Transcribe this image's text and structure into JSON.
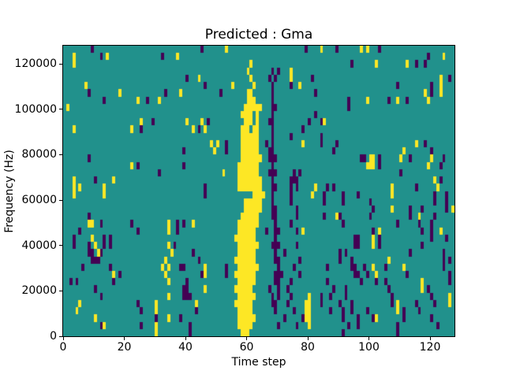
{
  "chart_data": {
    "type": "heatmap",
    "title": "Predicted : Gma",
    "xlabel": "Time step",
    "ylabel": "Frequency (Hz)",
    "x_ticks": [
      0,
      20,
      40,
      60,
      80,
      100,
      120
    ],
    "y_ticks": [
      0,
      20000,
      40000,
      60000,
      80000,
      100000,
      120000
    ],
    "xlim": [
      0,
      128
    ],
    "ylim": [
      0,
      128000
    ],
    "grid": {
      "cols": 128,
      "rows": 40,
      "row_order": "top_to_bottom",
      "hz_per_row": 3200,
      "default_class": "teal"
    },
    "colors": {
      "dark": "#440154",
      "teal": "#21918c",
      "yellow": "#fde725",
      "background": "#ffffff",
      "axis": "#000000"
    },
    "rows": [
      {
        "y": [
          53,
          84,
          97,
          99
        ],
        "d": [
          9,
          45,
          79,
          89,
          103
        ]
      },
      {
        "y": [
          3,
          14,
          37,
          124
        ],
        "d": [
          12,
          32,
          119
        ]
      },
      {
        "y": [
          3,
          61,
          102,
          112
        ],
        "d": [
          94,
          115,
          118
        ]
      },
      {
        "y": [
          60,
          74
        ],
        "d": [
          68,
          70
        ]
      },
      {
        "y": [
          44,
          61,
          74,
          123
        ],
        "d": [
          40,
          67,
          69,
          81,
          126
        ]
      },
      {
        "y": [
          7,
          55,
          62,
          77,
          123
        ],
        "d": [
          46,
          68,
          74,
          109,
          120
        ]
      },
      {
        "y": [
          18,
          38,
          [
            60,
            61
          ],
          118,
          123
        ],
        "d": [
          8,
          33,
          51,
          68,
          82,
          120
        ]
      },
      {
        "y": [
          24,
          31,
          [
            60,
            62
          ],
          99,
          109,
          119
        ],
        "d": [
          13,
          27,
          68,
          93,
          106,
          112
        ]
      },
      {
        "y": [
          1,
          [
            59,
            64
          ]
        ],
        "d": [
          [
            68,
            69
          ],
          93
        ]
      },
      {
        "y": [
          [
            58,
            61
          ],
          63
        ],
        "d": [
          68,
          82
        ]
      },
      {
        "y": [
          25,
          40,
          45,
          [
            59,
            61
          ],
          63,
          85
        ],
        "d": [
          29,
          47,
          [
            67,
            68
          ],
          80,
          84
        ]
      },
      {
        "y": [
          3,
          22,
          42,
          46,
          [
            58,
            60
          ],
          [
            62,
            63
          ]
        ],
        "d": [
          25,
          44,
          68,
          78
        ]
      },
      {
        "y": [
          [
            58,
            63
          ]
        ],
        "d": [
          68,
          74,
          84
        ]
      },
      {
        "y": [
          48,
          50,
          [
            58,
            63
          ],
          78,
          115
        ],
        "d": [
          53,
          66,
          68,
          84,
          89,
          118
        ]
      },
      {
        "y": [
          49,
          [
            58,
            63
          ],
          111
        ],
        "d": [
          39,
          53,
          [
            67,
            68
          ],
          88,
          120
        ]
      },
      {
        "y": [
          [
            58,
            64
          ],
          [
            100,
            101
          ],
          110,
          120
        ],
        "d": [
          8,
          [
            67,
            69
          ],
          [
            97,
            98
          ],
          103,
          113,
          124
        ]
      },
      {
        "y": [
          22,
          [
            57,
            63
          ],
          [
            99,
            101
          ],
          119
        ],
        "d": [
          24,
          39,
          68,
          103,
          123
        ]
      },
      {
        "y": [
          52,
          [
            57,
            63
          ]
        ],
        "d": [
          31,
          [
            67,
            69
          ],
          75,
          77,
          110
        ]
      },
      {
        "y": [
          3,
          16,
          [
            57,
            64
          ],
          121
        ],
        "d": [
          10,
          68,
          [
            74,
            76
          ],
          123
        ]
      },
      {
        "y": [
          3,
          5,
          13,
          [
            57,
            64
          ],
          82,
          107,
          122
        ],
        "d": [
          46,
          [
            68,
            69
          ],
          74,
          76,
          86,
          88,
          115
        ]
      },
      {
        "y": [
          3,
          13,
          [
            62,
            65
          ],
          81,
          107
        ],
        "d": [
          46,
          68,
          74,
          85,
          91,
          96,
          121,
          125
        ]
      },
      {
        "y": [
          [
            59,
            64
          ]
        ],
        "d": [
          68,
          74,
          85,
          91,
          100,
          121,
          125
        ]
      },
      {
        "y": [
          [
            59,
            64
          ],
          107,
          127
        ],
        "d": [
          [
            68,
            69
          ],
          76,
          101,
          113,
          117,
          125
        ]
      },
      {
        "y": [
          [
            58,
            63
          ],
          89,
          116
        ],
        "d": [
          8,
          [
            68,
            69
          ],
          76,
          85,
          90,
          100,
          113,
          121
        ]
      },
      {
        "y": [
          [
            8,
            9
          ],
          34,
          42,
          [
            57,
            63
          ]
        ],
        "d": [
          12,
          22,
          37,
          39,
          69,
          74,
          91,
          109,
          116,
          120
        ]
      },
      {
        "y": [
          34,
          [
            57,
            62
          ],
          78,
          103,
          123
        ],
        "d": [
          5,
          24,
          37,
          66,
          [
            69,
            70
          ],
          76,
          101,
          117,
          120
        ]
      },
      {
        "y": [
          9,
          [
            56,
            62
          ],
          101
        ],
        "d": [
          3,
          13,
          15,
          69,
          [
            95,
            96
          ],
          103,
          120,
          125
        ]
      },
      {
        "y": [
          10,
          34,
          [
            57,
            63
          ],
          101
        ],
        "d": [
          3,
          8,
          13,
          15,
          36,
          [
            68,
            70
          ],
          76,
          [
            95,
            96
          ],
          103,
          117
        ]
      },
      {
        "y": [
          11,
          35,
          [
            57,
            62
          ]
        ],
        "d": [
          [
            8,
            9
          ],
          12,
          42,
          69,
          72,
          90,
          92,
          113,
          124
        ]
      },
      {
        "y": [
          33,
          [
            56,
            62
          ],
          106
        ],
        "d": [
          [
            9,
            11
          ],
          44,
          [
            69,
            70
          ],
          77,
          90,
          94,
          124,
          126
        ]
      },
      {
        "y": [
          32,
          34,
          46,
          [
            57,
            63
          ],
          101,
          111
        ],
        "d": [
          6,
          15,
          [
            38,
            39
          ],
          53,
          70,
          75,
          86,
          [
            94,
            95
          ],
          98,
          105,
          124
        ]
      },
      {
        "y": [
          16,
          33,
          46,
          [
            56,
            62
          ],
          102
        ],
        "d": [
          18,
          45,
          53,
          [
            69,
            71
          ],
          77,
          [
            95,
            96
          ],
          99,
          112,
          126
        ]
      },
      {
        "y": [
          34,
          [
            57,
            62
          ],
          117
        ],
        "d": [
          2,
          4,
          16,
          40,
          [
            69,
            70
          ],
          74,
          86,
          97,
          102,
          105,
          126
        ]
      },
      {
        "y": [
          46,
          [
            56,
            61
          ],
          117
        ],
        "d": [
          10,
          [
            39,
            40
          ],
          67,
          70,
          73,
          88,
          92,
          106,
          119
        ]
      },
      {
        "y": [
          34,
          [
            57,
            62
          ],
          80,
          126
        ],
        "d": [
          12,
          [
            39,
            41
          ],
          68,
          70,
          74,
          84,
          87,
          92,
          107,
          120
        ]
      },
      {
        "y": [
          5,
          30,
          43,
          [
            56,
            61
          ],
          [
            79,
            80
          ],
          109,
          126
        ],
        "d": [
          24,
          [
            68,
            69
          ],
          73,
          84,
          90,
          94,
          107,
          115,
          121
        ]
      },
      {
        "y": [
          4,
          30,
          [
            57,
            61
          ],
          [
            79,
            80
          ],
          109
        ],
        "d": [
          25,
          43,
          69,
          75,
          87,
          91,
          94,
          99,
          111,
          116
        ]
      },
      {
        "y": [
          10,
          34,
          [
            57,
            62
          ],
          [
            79,
            80
          ],
          102
        ],
        "d": [
          30,
          38,
          72,
          78,
          91,
          96,
          101,
          111,
          120
        ]
      },
      {
        "y": [
          13,
          30,
          [
            57,
            61
          ],
          80
        ],
        "d": [
          12,
          25,
          41,
          70,
          76,
          93,
          96,
          109,
          122
        ]
      },
      {
        "y": [
          30,
          [
            58,
            60
          ]
        ],
        "d": [
          41,
          91,
          109
        ]
      }
    ]
  }
}
